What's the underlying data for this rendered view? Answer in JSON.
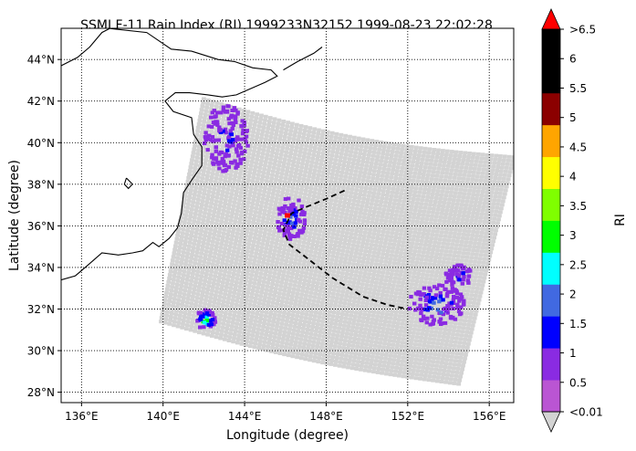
{
  "chart_data": {
    "type": "heatmap",
    "title": "SSMI F-11 Rain Index (RI) 1999233N32152 1999-08-23 22:02:28",
    "xlabel": "Longitude (degree)",
    "ylabel": "Latitude (degree)",
    "xlim": [
      135,
      157.2
    ],
    "ylim": [
      27.5,
      45.5
    ],
    "x_ticks": [
      136,
      140,
      144,
      148,
      152,
      156
    ],
    "x_tick_labels": [
      "136°E",
      "140°E",
      "144°E",
      "148°E",
      "152°E",
      "156°E"
    ],
    "y_ticks": [
      28,
      30,
      32,
      34,
      36,
      38,
      40,
      42,
      44
    ],
    "y_tick_labels": [
      "28°N",
      "30°N",
      "32°N",
      "34°N",
      "36°N",
      "38°N",
      "40°N",
      "42°N",
      "44°N"
    ],
    "grid": true,
    "colorbar": {
      "label": "RI",
      "tick_labels": [
        "<0.01",
        "0.5",
        "1",
        "1.5",
        "2",
        "2.5",
        "3",
        "3.5",
        "4",
        "4.5",
        "5",
        "5.5",
        "6",
        ">6.5"
      ],
      "colors": [
        "#d3d3d3",
        "#ba55d3",
        "#8a2be2",
        "#0000ff",
        "#4169e1",
        "#00ffff",
        "#00ff00",
        "#7fff00",
        "#ffff00",
        "#ffa500",
        "#8b0000",
        "#000000",
        "#000000",
        "#ff0000"
      ],
      "band_colors": [
        "#ba55d3",
        "#8a2be2",
        "#0000ff",
        "#4169e1",
        "#00ffff",
        "#00ff00",
        "#7fff00",
        "#ffff00",
        "#ffa500",
        "#8b0000",
        "#000000",
        "#000000"
      ],
      "under_color": "#d3d3d3",
      "over_color": "#ff0000"
    },
    "swath": {
      "no_rain_color": "#d3d3d3",
      "corners": [
        [
          142.0,
          42.1
        ],
        [
          157.2,
          39.3
        ],
        [
          154.5,
          28.4
        ],
        [
          139.9,
          31.4
        ]
      ]
    },
    "rain_clusters": [
      {
        "lon": [
          142.0,
          144.2
        ],
        "lat": [
          38.6,
          41.8
        ],
        "values": [
          0.5,
          0.8,
          1.2
        ]
      },
      {
        "lon": [
          145.6,
          147.0
        ],
        "lat": [
          35.2,
          37.4
        ],
        "values": [
          0.5,
          0.8,
          1.2,
          1.7
        ]
      },
      {
        "lon": [
          152.0,
          154.8
        ],
        "lat": [
          31.2,
          33.2
        ],
        "values": [
          0.5,
          0.8,
          1.2,
          1.7
        ]
      },
      {
        "lon": [
          153.8,
          155.2
        ],
        "lat": [
          33.0,
          34.2
        ],
        "values": [
          0.5,
          0.8,
          1.2
        ]
      },
      {
        "lon": [
          141.6,
          142.6
        ],
        "lat": [
          31.0,
          32.0
        ],
        "values": [
          0.5,
          1.2,
          2.2,
          2.7
        ]
      }
    ],
    "storm_position": {
      "lon": 146.1,
      "lat": 36.5,
      "color": "#ff0000"
    },
    "track": {
      "lon": [
        148.9,
        148.0,
        147.0,
        146.3,
        145.9,
        146.2,
        147.0,
        148.3,
        149.8,
        151.0,
        152.0
      ],
      "lat": [
        37.7,
        37.3,
        36.9,
        36.6,
        35.8,
        35.1,
        34.5,
        33.5,
        32.6,
        32.2,
        32.0
      ]
    }
  }
}
